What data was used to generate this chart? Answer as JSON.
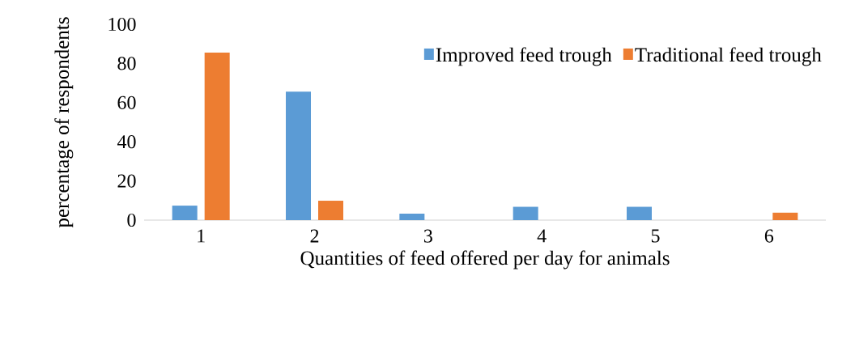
{
  "chart_data": {
    "type": "bar",
    "xlabel": "Quantities of feed offered per day for animals",
    "ylabel": "percentage of respondents",
    "categories": [
      "1",
      "2",
      "3",
      "4",
      "5",
      "6"
    ],
    "series": [
      {
        "name": "Improved feed trough",
        "color": "#5b9bd5",
        "values": [
          7.4,
          65.6,
          3.3,
          6.8,
          6.8,
          0
        ]
      },
      {
        "name": "Traditional feed trough",
        "color": "#ed7d31",
        "values": [
          85.5,
          9.9,
          0,
          0,
          0,
          3.8
        ]
      }
    ],
    "ylim": [
      0,
      100
    ],
    "yticks": [
      0,
      20,
      40,
      60,
      80,
      100
    ],
    "grid": false,
    "legend": "top right"
  }
}
